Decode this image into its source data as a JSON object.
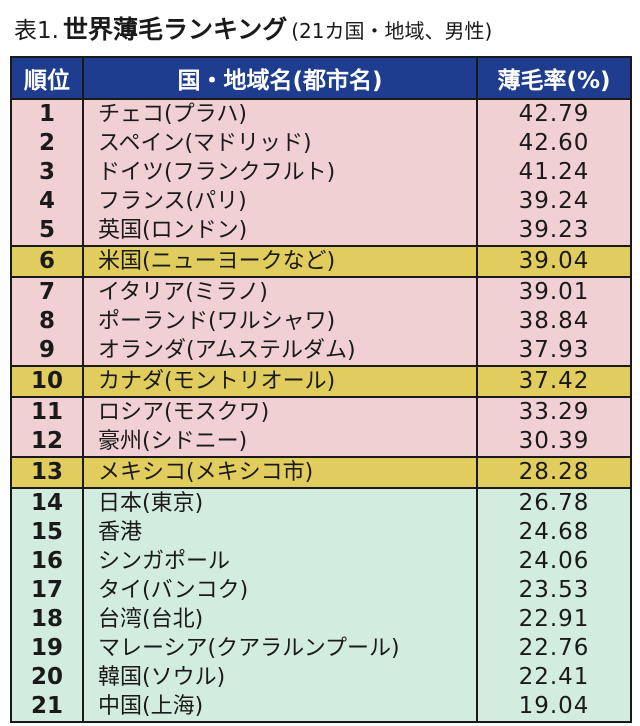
{
  "title": {
    "prefix": "表1.",
    "main": "世界薄毛ランキング",
    "sub": "(21カ国・地域、男性)"
  },
  "colors": {
    "header": "#1e3d8f",
    "top_rows": "#f0d0d3",
    "highlight_rows": "#e0cd5e",
    "lower_rows": "#d2ede0"
  },
  "chart_data": {
    "type": "table",
    "columns": [
      "順位",
      "国・地域名(都市名)",
      "薄毛率(%)"
    ],
    "rows": [
      {
        "rank": "1",
        "name": "チェコ(プラハ)",
        "rate": "42.79",
        "group": "top"
      },
      {
        "rank": "2",
        "name": "スペイン(マドリッド)",
        "rate": "42.60",
        "group": "top"
      },
      {
        "rank": "3",
        "name": "ドイツ(フランクフルト)",
        "rate": "41.24",
        "group": "top"
      },
      {
        "rank": "4",
        "name": "フランス(パリ)",
        "rate": "39.24",
        "group": "top"
      },
      {
        "rank": "5",
        "name": "英国(ロンドン)",
        "rate": "39.23",
        "group": "top"
      },
      {
        "rank": "6",
        "name": "米国(ニューヨークなど)",
        "rate": "39.04",
        "group": "hl"
      },
      {
        "rank": "7",
        "name": "イタリア(ミラノ)",
        "rate": "39.01",
        "group": "top"
      },
      {
        "rank": "8",
        "name": "ポーランド(ワルシャワ)",
        "rate": "38.84",
        "group": "top"
      },
      {
        "rank": "9",
        "name": "オランダ(アムステルダム)",
        "rate": "37.93",
        "group": "top"
      },
      {
        "rank": "10",
        "name": "カナダ(モントリオール)",
        "rate": "37.42",
        "group": "hl"
      },
      {
        "rank": "11",
        "name": "ロシア(モスクワ)",
        "rate": "33.29",
        "group": "top"
      },
      {
        "rank": "12",
        "name": "豪州(シドニー)",
        "rate": "30.39",
        "group": "top"
      },
      {
        "rank": "13",
        "name": "メキシコ(メキシコ市)",
        "rate": "28.28",
        "group": "hl"
      },
      {
        "rank": "14",
        "name": "日本(東京)",
        "rate": "26.78",
        "group": "low"
      },
      {
        "rank": "15",
        "name": "香港",
        "rate": "24.68",
        "group": "low"
      },
      {
        "rank": "16",
        "name": "シンガポール",
        "rate": "24.06",
        "group": "low"
      },
      {
        "rank": "17",
        "name": "タイ(バンコク)",
        "rate": "23.53",
        "group": "low"
      },
      {
        "rank": "18",
        "name": "台湾(台北)",
        "rate": "22.91",
        "group": "low"
      },
      {
        "rank": "19",
        "name": "マレーシア(クアラルンプール)",
        "rate": "22.76",
        "group": "low"
      },
      {
        "rank": "20",
        "name": "韓国(ソウル)",
        "rate": "22.41",
        "group": "low"
      },
      {
        "rank": "21",
        "name": "中国(上海)",
        "rate": "19.04",
        "group": "low"
      }
    ]
  }
}
